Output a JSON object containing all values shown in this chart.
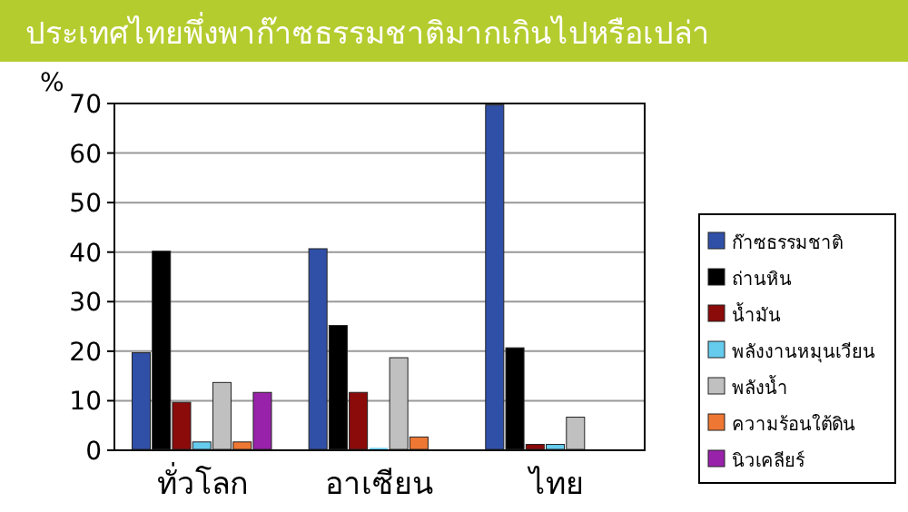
{
  "chart_data": {
    "type": "bar",
    "title": "ประเทศไทยพึ่งพาก๊าซธรรมชาติมากเกินไปหรือเปล่า",
    "ylabel": "%",
    "categories": [
      "ทั่วโลก",
      "อาเซียน",
      "ไทย"
    ],
    "series": [
      {
        "name": "ก๊าซธรรมชาติ",
        "color": "#3050a8",
        "values": [
          19.5,
          40.5,
          69.5
        ]
      },
      {
        "name": "ถ่านหิน",
        "color": "#000000",
        "values": [
          40,
          25,
          20.5
        ]
      },
      {
        "name": "น้ำมัน",
        "color": "#8b0a0a",
        "values": [
          9.5,
          11.5,
          1
        ]
      },
      {
        "name": "พลังงานหมุนเวียน",
        "color": "#66ccee",
        "values": [
          1.5,
          0.3,
          1
        ]
      },
      {
        "name": "พลังน้ำ",
        "color": "#c0c0c0",
        "values": [
          13.5,
          18.5,
          6.5
        ]
      },
      {
        "name": "ความร้อนใต้ดิน",
        "color": "#ee7733",
        "values": [
          1.5,
          2.5,
          0
        ]
      },
      {
        "name": "นิวเคลียร์",
        "color": "#9922aa",
        "values": [
          11.5,
          0,
          0
        ]
      }
    ],
    "ylim": [
      0,
      70
    ],
    "yticks": [
      0,
      10,
      20,
      30,
      40,
      50,
      60,
      70
    ],
    "grid": "y",
    "legend": "right"
  }
}
